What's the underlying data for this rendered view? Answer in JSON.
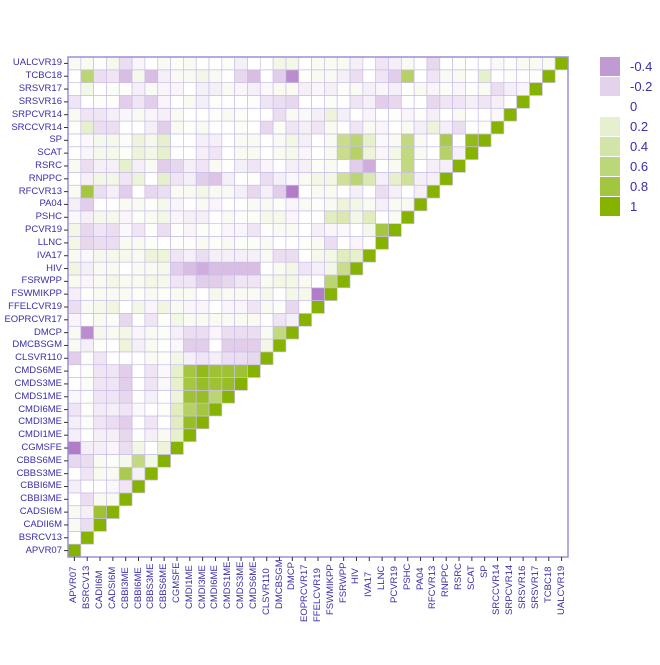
{
  "chart_data": {
    "type": "heatmap",
    "title": "",
    "xlabel": "",
    "ylabel": "",
    "variables": [
      "APVR07",
      "BSRCV13",
      "CADII6M",
      "CADSI6M",
      "CBBI3ME",
      "CBBI6ME",
      "CBBS3ME",
      "CBBS6ME",
      "CGMSFE",
      "CMDI1ME",
      "CMDI3ME",
      "CMDI6ME",
      "CMDS1ME",
      "CMDS3ME",
      "CMDS6ME",
      "CLSVR110",
      "DMCBSGM",
      "DMCP",
      "EOPRCVR17",
      "FFELCVR19",
      "FSWMIKPP",
      "FSRWPP",
      "HIV",
      "IVA17",
      "LLNC",
      "PCVR19",
      "PSHC",
      "PA04",
      "RFCVR13",
      "RNPPC",
      "RSRC",
      "SCAT",
      "SP",
      "SRCCVR14",
      "SRPCVR14",
      "SRSVR16",
      "SRSVR17",
      "TCBC18",
      "UALCVR19"
    ],
    "triangle": "lower",
    "value_range": [
      -0.4,
      1
    ],
    "legend": {
      "position": "right",
      "entries": [
        {
          "label": "-0.4",
          "color": "#c09ad3"
        },
        {
          "label": "-0.2",
          "color": "#e2d2ea"
        },
        {
          "label": "0",
          "color": "#ffffff"
        },
        {
          "label": "0.2",
          "color": "#e6efd0"
        },
        {
          "label": "0.4",
          "color": "#d3e4a8"
        },
        {
          "label": "0.6",
          "color": "#bcd67a"
        },
        {
          "label": "0.8",
          "color": "#a2c640"
        },
        {
          "label": "1",
          "color": "#86b300"
        }
      ]
    },
    "matrix": [
      [
        1
      ],
      [
        0.0,
        1
      ],
      [
        0.05,
        -0.1,
        1
      ],
      [
        0.05,
        -0.05,
        0.8,
        1
      ],
      [
        0.0,
        -0.1,
        0.05,
        0.05,
        1
      ],
      [
        -0.05,
        0.0,
        0.0,
        -0.02,
        -0.08,
        1
      ],
      [
        0.0,
        -0.08,
        0.05,
        0.05,
        0.7,
        -0.05,
        1
      ],
      [
        -0.12,
        -0.1,
        0.05,
        0.03,
        0.08,
        0.5,
        0.1,
        1
      ],
      [
        -0.4,
        -0.05,
        -0.05,
        -0.03,
        -0.1,
        0.1,
        0.0,
        0.15,
        1
      ],
      [
        -0.05,
        0.0,
        -0.05,
        -0.05,
        -0.12,
        0.02,
        -0.05,
        0.05,
        0.2,
        1
      ],
      [
        -0.05,
        0.03,
        -0.08,
        -0.1,
        -0.15,
        0.0,
        -0.08,
        0.0,
        0.25,
        0.85,
        1
      ],
      [
        -0.08,
        0.02,
        -0.06,
        -0.05,
        -0.08,
        -0.02,
        0.0,
        0.02,
        0.25,
        0.6,
        0.75,
        1
      ],
      [
        -0.02,
        0.02,
        -0.08,
        -0.08,
        -0.12,
        0.02,
        -0.05,
        0.0,
        0.15,
        0.8,
        0.85,
        0.55,
        1
      ],
      [
        0.0,
        0.03,
        -0.08,
        -0.08,
        -0.15,
        0.0,
        -0.08,
        -0.02,
        0.2,
        0.75,
        0.85,
        0.8,
        0.85,
        1
      ],
      [
        0.0,
        0.02,
        -0.08,
        -0.08,
        -0.15,
        0.0,
        -0.08,
        -0.02,
        0.2,
        0.75,
        0.9,
        0.8,
        0.8,
        0.8,
        1
      ],
      [
        -0.15,
        0.03,
        -0.08,
        0.0,
        0.02,
        0.0,
        0.05,
        0.02,
        0.1,
        -0.05,
        -0.08,
        -0.05,
        -0.1,
        -0.1,
        -0.12,
        1
      ],
      [
        0.05,
        -0.05,
        0.02,
        0.0,
        0.15,
        -0.05,
        0.05,
        0.0,
        -0.02,
        -0.15,
        -0.15,
        0.0,
        -0.15,
        -0.15,
        -0.15,
        0.1,
        1
      ],
      [
        0.05,
        -0.35,
        0.08,
        0.05,
        0.1,
        -0.03,
        0.05,
        0.03,
        -0.05,
        -0.1,
        -0.1,
        -0.03,
        -0.1,
        -0.1,
        -0.1,
        0.05,
        0.5,
        1
      ],
      [
        -0.03,
        0.0,
        0.05,
        0.03,
        -0.12,
        0.02,
        -0.08,
        0.02,
        0.1,
        0.05,
        0.05,
        0.05,
        0.05,
        0.05,
        0.05,
        0.0,
        -0.08,
        -0.05,
        1
      ],
      [
        -0.1,
        0.05,
        0.08,
        0.12,
        0.0,
        0.1,
        -0.03,
        0.12,
        0.05,
        -0.03,
        -0.03,
        0.0,
        -0.03,
        -0.03,
        -0.08,
        0.05,
        0.03,
        -0.12,
        0.02,
        1
      ],
      [
        -0.05,
        0.0,
        0.05,
        0.05,
        0.05,
        0.02,
        0.05,
        0.03,
        0.05,
        0.05,
        0.0,
        0.08,
        0.05,
        0.05,
        0.05,
        0.08,
        0.0,
        0.1,
        0.08,
        -0.4,
        1
      ],
      [
        0.05,
        -0.03,
        0.05,
        0.1,
        0.05,
        0.05,
        0.1,
        0.08,
        -0.08,
        -0.08,
        -0.15,
        -0.15,
        -0.12,
        -0.08,
        -0.08,
        0.05,
        0.1,
        0.1,
        0.05,
        0.0,
        0.55,
        1
      ],
      [
        0.12,
        -0.05,
        0.05,
        0.05,
        0.0,
        0.05,
        0.05,
        0.08,
        -0.15,
        -0.2,
        -0.25,
        -0.2,
        -0.2,
        -0.2,
        -0.2,
        0.0,
        0.05,
        0.1,
        -0.08,
        -0.05,
        0.1,
        0.45,
        1
      ],
      [
        0.05,
        -0.02,
        0.08,
        0.08,
        0.08,
        0.05,
        0.15,
        0.15,
        -0.08,
        -0.05,
        -0.1,
        -0.05,
        -0.05,
        -0.05,
        -0.05,
        0.05,
        -0.1,
        -0.1,
        0.0,
        0.08,
        0.1,
        0.25,
        0.2,
        1
      ],
      [
        0.1,
        -0.12,
        -0.1,
        -0.1,
        0.05,
        0.05,
        0.03,
        0.0,
        0.02,
        0.02,
        0.05,
        0.02,
        0.05,
        0.03,
        0.03,
        0.05,
        0.0,
        0.0,
        0.02,
        0.05,
        -0.1,
        0.0,
        -0.03,
        0.02,
        1
      ],
      [
        0.1,
        -0.12,
        -0.08,
        -0.1,
        -0.02,
        -0.08,
        0.02,
        -0.1,
        0.02,
        -0.03,
        0.03,
        0.02,
        -0.03,
        -0.03,
        -0.08,
        0.02,
        0.05,
        0.05,
        0.0,
        -0.05,
        -0.03,
        -0.02,
        0.0,
        0.08,
        0.75,
        1
      ],
      [
        -0.02,
        -0.05,
        0.08,
        0.08,
        -0.03,
        0.03,
        0.05,
        0.1,
        -0.03,
        -0.05,
        -0.05,
        0.0,
        0.05,
        0.02,
        0.03,
        0.08,
        0.08,
        -0.03,
        0.0,
        0.0,
        0.25,
        0.3,
        0.1,
        0.25,
        0.0,
        0.05,
        1
      ],
      [
        -0.05,
        -0.15,
        0.0,
        0.0,
        0.05,
        0.05,
        0.02,
        0.08,
        -0.03,
        0.0,
        0.05,
        -0.03,
        0.0,
        0.0,
        0.05,
        0.05,
        0.03,
        -0.03,
        0.05,
        0.02,
        0.05,
        0.15,
        0.1,
        0.05,
        -0.05,
        0.05,
        0.05,
        1
      ],
      [
        0.05,
        0.75,
        -0.1,
        -0.05,
        -0.15,
        0.0,
        -0.12,
        -0.1,
        0.05,
        0.05,
        0.1,
        0.05,
        0.05,
        -0.05,
        -0.12,
        -0.05,
        -0.15,
        -0.4,
        0.0,
        0.05,
        0.05,
        0.0,
        -0.05,
        0.0,
        -0.1,
        -0.05,
        0.0,
        -0.05,
        1
      ],
      [
        0.0,
        -0.05,
        0.1,
        0.1,
        -0.08,
        0.15,
        0.0,
        0.2,
        -0.08,
        -0.05,
        -0.15,
        -0.18,
        -0.05,
        0.0,
        0.02,
        -0.1,
        -0.05,
        -0.02,
        0.05,
        0.1,
        0.1,
        0.4,
        0.55,
        0.3,
        -0.05,
        0.2,
        0.4,
        -0.05,
        -0.05,
        1
      ],
      [
        0.05,
        -0.1,
        -0.05,
        -0.05,
        0.2,
        -0.05,
        0.05,
        -0.15,
        -0.12,
        -0.05,
        -0.08,
        0.05,
        0.0,
        -0.05,
        -0.08,
        -0.03,
        0.0,
        -0.05,
        -0.05,
        0.03,
        0.05,
        0.0,
        -0.15,
        -0.25,
        0.0,
        0.05,
        0.5,
        0.0,
        -0.05,
        -0.05,
        1
      ],
      [
        0.0,
        -0.03,
        0.08,
        0.08,
        0.03,
        0.15,
        0.1,
        0.2,
        0.0,
        0.0,
        -0.05,
        -0.08,
        0.0,
        0.05,
        0.05,
        0.0,
        0.05,
        0.08,
        -0.03,
        0.0,
        0.05,
        0.45,
        0.6,
        0.15,
        -0.03,
        0.1,
        0.5,
        0.05,
        0.0,
        0.6,
        -0.05,
        1
      ],
      [
        0.0,
        -0.02,
        0.08,
        0.08,
        0.03,
        0.15,
        0.08,
        0.2,
        0.0,
        0.0,
        -0.05,
        -0.05,
        0.0,
        0.05,
        0.05,
        0.0,
        0.05,
        0.1,
        -0.05,
        0.0,
        0.05,
        0.45,
        0.55,
        0.2,
        -0.02,
        0.05,
        0.5,
        0.05,
        0.0,
        0.7,
        0.0,
        0.9,
        1
      ],
      [
        0.02,
        0.2,
        -0.1,
        -0.1,
        0.0,
        0.0,
        -0.05,
        -0.15,
        0.05,
        0.02,
        0.05,
        0.0,
        0.0,
        0.03,
        0.0,
        -0.12,
        0.03,
        -0.08,
        -0.05,
        -0.08,
        0.05,
        0.0,
        -0.08,
        0.05,
        -0.03,
        0.0,
        0.05,
        -0.05,
        0.15,
        -0.05,
        -0.1,
        0.0,
        0.02,
        1
      ],
      [
        0.05,
        -0.08,
        -0.08,
        -0.05,
        -0.03,
        0.05,
        -0.03,
        -0.05,
        0.05,
        0.0,
        0.0,
        0.02,
        0.05,
        0.03,
        0.0,
        0.0,
        -0.1,
        0.05,
        -0.02,
        -0.05,
        0.15,
        -0.05,
        0.0,
        -0.03,
        0.0,
        0.02,
        -0.03,
        0.02,
        -0.05,
        0.0,
        0.05,
        0.0,
        0.0,
        -0.02,
        1
      ],
      [
        -0.08,
        0.0,
        0.02,
        0.02,
        -0.15,
        -0.08,
        -0.15,
        -0.03,
        0.0,
        0.05,
        -0.05,
        0.02,
        0.0,
        0.0,
        0.02,
        -0.08,
        -0.1,
        -0.12,
        0.0,
        0.0,
        0.03,
        0.0,
        -0.08,
        -0.05,
        -0.15,
        -0.12,
        0.0,
        0.0,
        -0.12,
        -0.08,
        -0.08,
        -0.05,
        -0.08,
        -0.05,
        0.0,
        1
      ],
      [
        0.0,
        0.1,
        0.0,
        0.03,
        0.02,
        -0.05,
        0.05,
        -0.03,
        -0.03,
        0.0,
        -0.05,
        -0.05,
        0.05,
        -0.03,
        -0.05,
        -0.02,
        0.05,
        0.05,
        -0.05,
        -0.03,
        -0.05,
        0.02,
        0.05,
        -0.05,
        -0.03,
        -0.05,
        0.0,
        0.05,
        -0.03,
        0.03,
        -0.03,
        0.02,
        0.05,
        -0.1,
        -0.05,
        -0.03,
        1
      ],
      [
        0.0,
        0.55,
        -0.1,
        -0.08,
        -0.2,
        0.08,
        -0.2,
        -0.05,
        0.05,
        0.05,
        0.1,
        0.05,
        0.0,
        -0.12,
        -0.2,
        0.0,
        -0.15,
        -0.35,
        0.02,
        0.05,
        0.05,
        -0.05,
        -0.1,
        0.0,
        -0.08,
        -0.15,
        0.6,
        0.0,
        -0.08,
        0.05,
        0.05,
        0.0,
        0.2,
        0.0,
        0.02,
        0.0,
        0.02,
        1
      ],
      [
        0.05,
        0.05,
        0.02,
        0.08,
        -0.1,
        -0.03,
        0.0,
        0.05,
        0.03,
        0.05,
        0.0,
        0.0,
        0.03,
        -0.05,
        0.0,
        0.0,
        0.1,
        0.1,
        0.0,
        0.05,
        0.05,
        0.05,
        -0.05,
        0.0,
        -0.08,
        -0.05,
        0.05,
        0.0,
        -0.12,
        0.0,
        0.02,
        0.0,
        0.0,
        -0.02,
        0.02,
        0.05,
        0.05,
        0.05,
        1
      ]
    ]
  },
  "legend": {
    "labels": [
      "-0.4",
      "-0.2",
      "0",
      "0.2",
      "0.4",
      "0.6",
      "0.8",
      "1"
    ]
  }
}
